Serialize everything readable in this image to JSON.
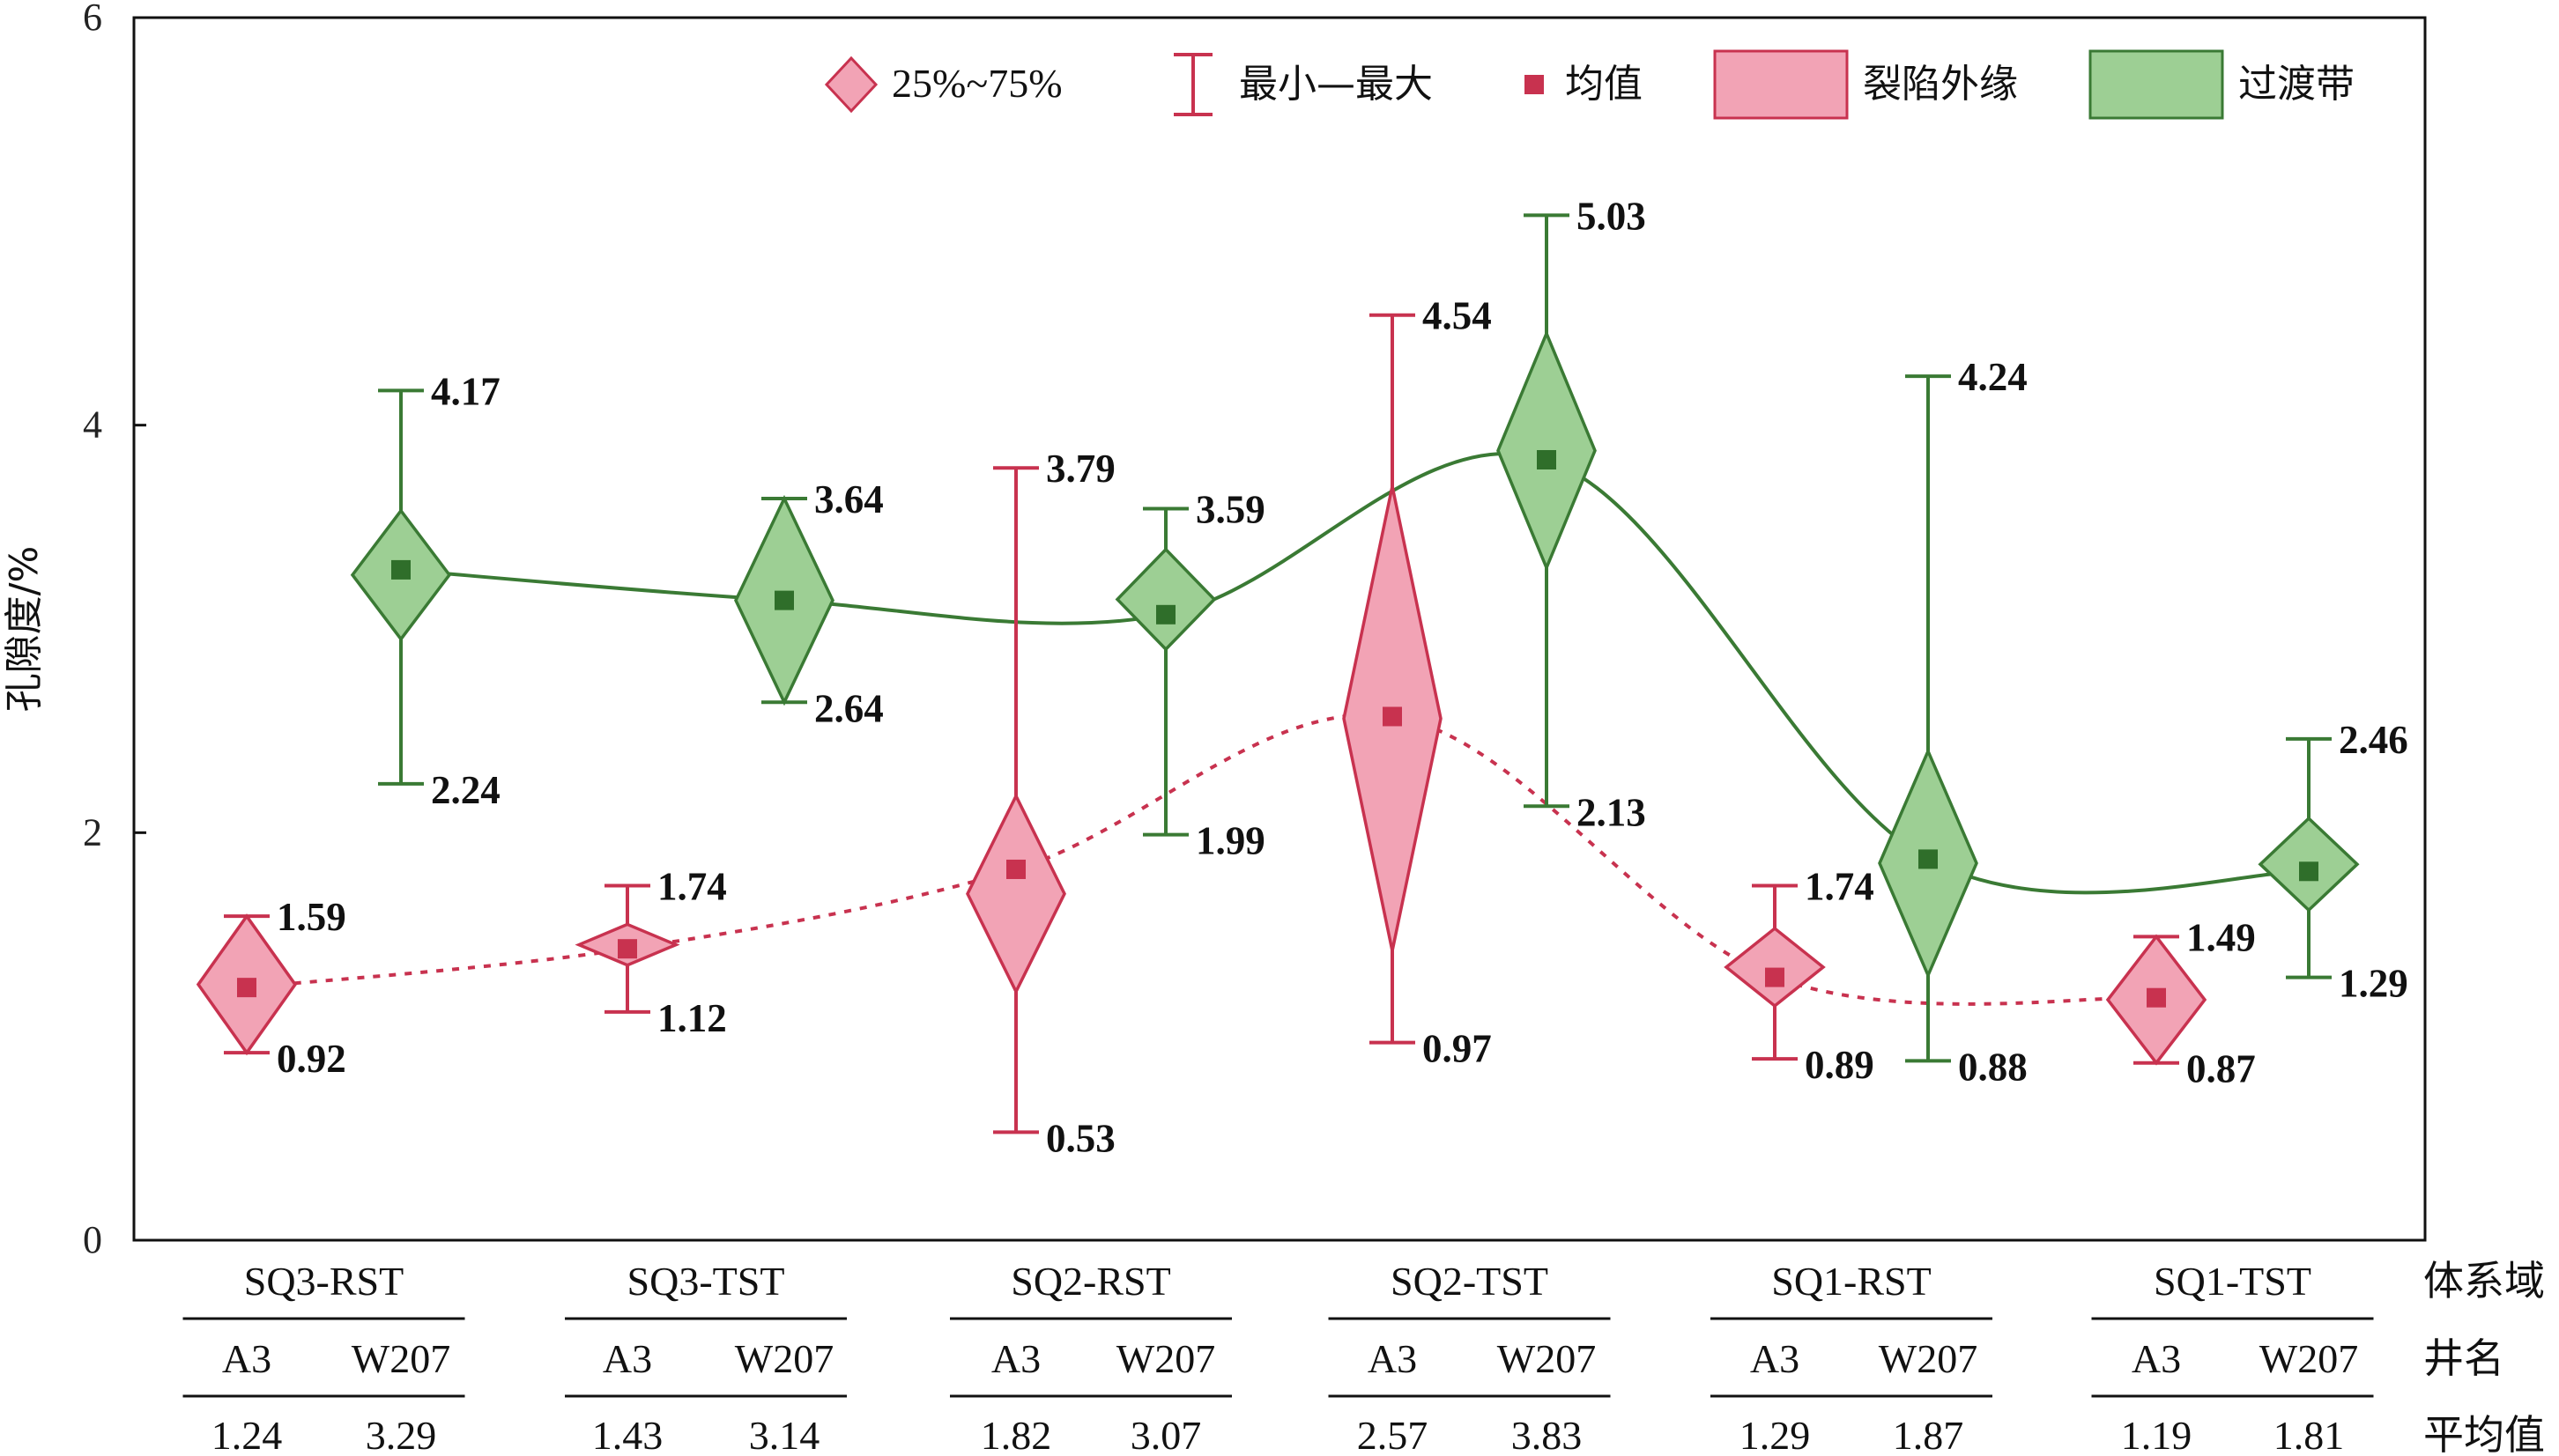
{
  "chart_data": {
    "type": "box",
    "ylabel": "孔隙度/%",
    "ylim": [
      0,
      6
    ],
    "yticks": [
      0,
      2,
      4,
      6
    ],
    "grid": false,
    "legend_position": "top-right",
    "legend": {
      "box_label": "25%~75%",
      "whisker_label": "最小—最大",
      "mean_label": "均值",
      "series": [
        "裂陷外缘",
        "过渡带"
      ]
    },
    "colors": {
      "series_0_fill": "#f2a3b5",
      "series_0_stroke": "#c8324f",
      "series_1_fill": "#9dcf94",
      "series_1_stroke": "#3a7a34",
      "series_0_mean": "#c8324f",
      "series_1_mean": "#2f6e2a"
    },
    "categories": [
      "SQ3-RST",
      "SQ3-TST",
      "SQ2-RST",
      "SQ2-TST",
      "SQ1-RST",
      "SQ1-TST"
    ],
    "series": [
      {
        "name": "裂陷外缘",
        "well": "A3",
        "min": [
          0.92,
          1.12,
          0.53,
          0.97,
          0.89,
          0.87
        ],
        "max": [
          1.59,
          1.74,
          3.79,
          4.54,
          1.74,
          1.49
        ],
        "q1": [
          0.92,
          1.35,
          1.22,
          1.42,
          1.15,
          0.87
        ],
        "q3": [
          1.59,
          1.55,
          2.18,
          3.7,
          1.53,
          1.49
        ],
        "mean": [
          1.24,
          1.43,
          1.82,
          2.57,
          1.29,
          1.19
        ],
        "min_labels": [
          "0.92",
          "1.12",
          "0.53",
          "0.97",
          "0.89",
          "0.87"
        ],
        "max_labels": [
          "1.59",
          "1.74",
          "3.79",
          "4.54",
          "1.74",
          "1.49"
        ]
      },
      {
        "name": "过渡带",
        "well": "W207",
        "min": [
          2.24,
          2.64,
          1.99,
          2.13,
          0.88,
          1.29
        ],
        "max": [
          4.17,
          3.64,
          3.59,
          5.03,
          4.24,
          2.46
        ],
        "q1": [
          2.95,
          2.64,
          2.9,
          3.3,
          1.3,
          1.62
        ],
        "q3": [
          3.58,
          3.64,
          3.39,
          4.45,
          2.4,
          2.07
        ],
        "mean": [
          3.29,
          3.14,
          3.07,
          3.83,
          1.87,
          1.81
        ],
        "min_labels": [
          "2.24",
          "2.64",
          "1.99",
          "2.13",
          "0.88",
          "1.29"
        ],
        "max_labels": [
          "4.17",
          "3.64",
          "3.59",
          "5.03",
          "4.24",
          "2.46"
        ]
      }
    ],
    "table": {
      "row_labels": [
        "体系域",
        "井名",
        "平均值"
      ],
      "wells": [
        "A3",
        "W207"
      ],
      "means_text": [
        [
          "1.24",
          "3.29"
        ],
        [
          "1.43",
          "3.14"
        ],
        [
          "1.82",
          "3.07"
        ],
        [
          "2.57",
          "3.83"
        ],
        [
          "1.29",
          "1.87"
        ],
        [
          "1.19",
          "1.81"
        ]
      ]
    }
  }
}
